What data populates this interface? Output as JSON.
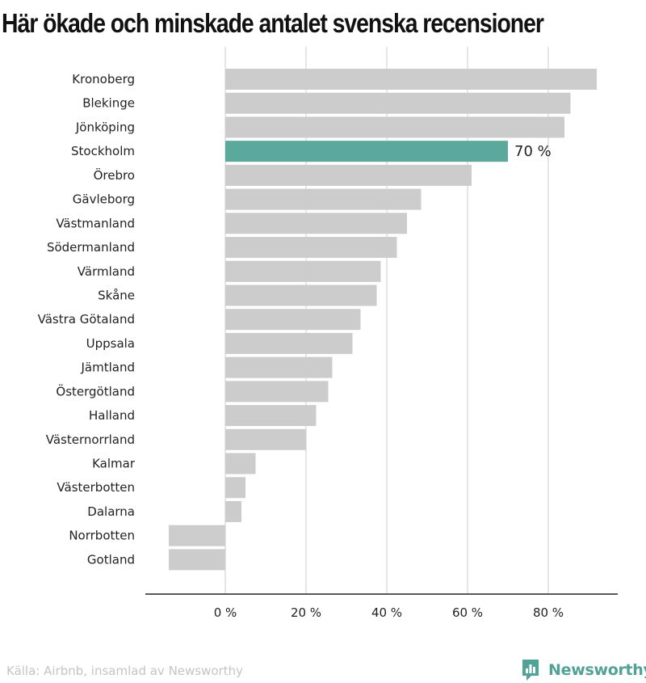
{
  "chart_data": {
    "type": "bar",
    "orientation": "horizontal",
    "title": "Här ökade och minskade antalet svenska recensioner",
    "categories": [
      "Kronoberg",
      "Blekinge",
      "Jönköping",
      "Stockholm",
      "Örebro",
      "Gävleborg",
      "Västmanland",
      "Södermanland",
      "Värmland",
      "Skåne",
      "Västra Götaland",
      "Uppsala",
      "Jämtland",
      "Östergötland",
      "Halland",
      "Västernorrland",
      "Kalmar",
      "Västerbotten",
      "Dalarna",
      "Norrbotten",
      "Gotland"
    ],
    "values": [
      92,
      85.5,
      84,
      70,
      61,
      48.5,
      45,
      42.5,
      38.5,
      37.5,
      33.5,
      31.5,
      26.5,
      25.5,
      22.5,
      20,
      7.5,
      5,
      4,
      -14,
      -14
    ],
    "highlight_index": 3,
    "highlight_label": "70 %",
    "xlim": [
      -20,
      97
    ],
    "xticks": [
      0,
      20,
      40,
      60,
      80
    ],
    "xtick_labels": [
      "0 %",
      "20 %",
      "40 %",
      "60 %",
      "80 %"
    ],
    "grid": true,
    "colors": {
      "bar": "#cccccc",
      "highlight": "#5ba89c",
      "grid": "#dddddd",
      "axis": "#222222"
    }
  },
  "footer": {
    "source": "Källa: Airbnb, insamlad av Newsworthy",
    "brand": "Newsworthy",
    "brand_color": "#4fa397",
    "brand_icon": "newsworthy-logo-icon"
  }
}
